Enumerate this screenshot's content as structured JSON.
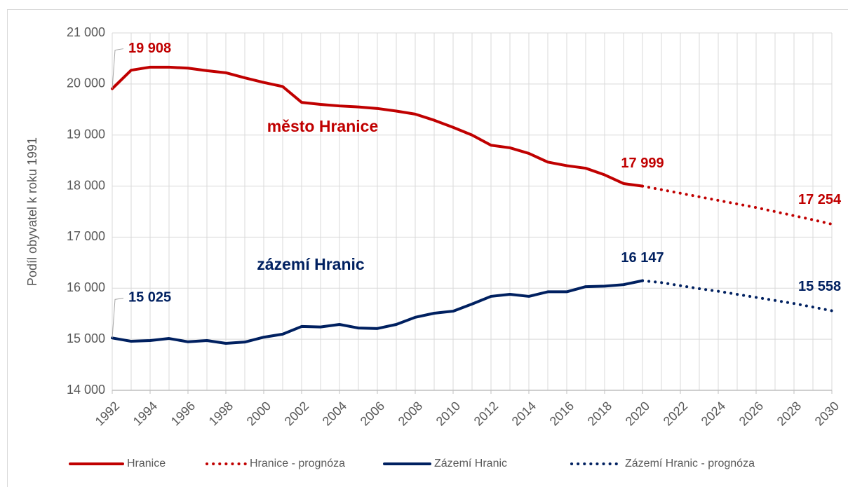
{
  "chart_data": {
    "type": "line",
    "y_label": "Podíl obyvatel k roku 1991",
    "annotations": [
      "město Hranice",
      "zázemí Hranic"
    ],
    "x": [
      1992,
      1993,
      1994,
      1995,
      1996,
      1997,
      1998,
      1999,
      2000,
      2001,
      2002,
      2003,
      2004,
      2005,
      2006,
      2007,
      2008,
      2009,
      2010,
      2011,
      2012,
      2013,
      2014,
      2015,
      2016,
      2017,
      2018,
      2019,
      2020,
      2021,
      2022,
      2023,
      2024,
      2025,
      2026,
      2027,
      2028,
      2029,
      2030
    ],
    "xlim": [
      1992,
      2030
    ],
    "xticks": [
      1992,
      1994,
      1996,
      1998,
      2000,
      2002,
      2004,
      2006,
      2008,
      2010,
      2012,
      2014,
      2016,
      2018,
      2020,
      2022,
      2024,
      2026,
      2028,
      2030
    ],
    "ylim": [
      14000,
      21000
    ],
    "yticks": [
      {
        "value": 14000,
        "label": "14 000"
      },
      {
        "value": 15000,
        "label": "15 000"
      },
      {
        "value": 16000,
        "label": "16 000"
      },
      {
        "value": 17000,
        "label": "17 000"
      },
      {
        "value": 18000,
        "label": "18 000"
      },
      {
        "value": 19000,
        "label": "19 000"
      },
      {
        "value": 20000,
        "label": "20 000"
      },
      {
        "value": 21000,
        "label": "21 000"
      }
    ],
    "grid": true,
    "legend": "bottom",
    "series": [
      {
        "name": "Hranice",
        "color": "#c00000",
        "style": "solid",
        "values": [
          19908,
          20270,
          20330,
          20330,
          20310,
          20260,
          20220,
          20120,
          20030,
          19950,
          19640,
          19600,
          19570,
          19550,
          19520,
          19470,
          19410,
          19290,
          19150,
          19000,
          18800,
          18750,
          18640,
          18470,
          18400,
          18350,
          18220,
          18050,
          17999,
          null,
          null,
          null,
          null,
          null,
          null,
          null,
          null,
          null,
          null
        ],
        "value_labels": [
          "19 908",
          null,
          null,
          null,
          null,
          null,
          null,
          null,
          null,
          null,
          null,
          null,
          null,
          null,
          null,
          null,
          null,
          null,
          null,
          null,
          null,
          null,
          null,
          null,
          null,
          null,
          null,
          null,
          "17 999",
          null,
          null,
          null,
          null,
          null,
          null,
          null,
          null,
          null,
          null
        ]
      },
      {
        "name": "Hranice - prognóza",
        "color": "#c00000",
        "style": "dotted",
        "values": [
          null,
          null,
          null,
          null,
          null,
          null,
          null,
          null,
          null,
          null,
          null,
          null,
          null,
          null,
          null,
          null,
          null,
          null,
          null,
          null,
          null,
          null,
          null,
          null,
          null,
          null,
          null,
          null,
          17999,
          17930,
          17860,
          17790,
          17720,
          17650,
          17580,
          17500,
          17420,
          17340,
          17254
        ],
        "value_labels": [
          null,
          null,
          null,
          null,
          null,
          null,
          null,
          null,
          null,
          null,
          null,
          null,
          null,
          null,
          null,
          null,
          null,
          null,
          null,
          null,
          null,
          null,
          null,
          null,
          null,
          null,
          null,
          null,
          null,
          null,
          null,
          null,
          null,
          null,
          null,
          null,
          null,
          null,
          "17 254"
        ]
      },
      {
        "name": "Zázemí Hranic",
        "color": "#002060",
        "style": "solid",
        "values": [
          15025,
          14960,
          14975,
          15015,
          14950,
          14975,
          14920,
          14945,
          15040,
          15100,
          15250,
          15240,
          15290,
          15220,
          15210,
          15290,
          15430,
          15510,
          15550,
          15690,
          15840,
          15880,
          15840,
          15930,
          15930,
          16030,
          16040,
          16070,
          16147,
          null,
          null,
          null,
          null,
          null,
          null,
          null,
          null,
          null,
          null
        ],
        "value_labels": [
          "15 025",
          null,
          null,
          null,
          null,
          null,
          null,
          null,
          null,
          null,
          null,
          null,
          null,
          null,
          null,
          null,
          null,
          null,
          null,
          null,
          null,
          null,
          null,
          null,
          null,
          null,
          null,
          null,
          "16 147",
          null,
          null,
          null,
          null,
          null,
          null,
          null,
          null,
          null,
          null
        ]
      },
      {
        "name": "Zázemí Hranic - prognóza",
        "color": "#002060",
        "style": "dotted",
        "values": [
          null,
          null,
          null,
          null,
          null,
          null,
          null,
          null,
          null,
          null,
          null,
          null,
          null,
          null,
          null,
          null,
          null,
          null,
          null,
          null,
          null,
          null,
          null,
          null,
          null,
          null,
          null,
          null,
          16147,
          16110,
          16050,
          15990,
          15940,
          15880,
          15820,
          15760,
          15700,
          15630,
          15558
        ],
        "value_labels": [
          null,
          null,
          null,
          null,
          null,
          null,
          null,
          null,
          null,
          null,
          null,
          null,
          null,
          null,
          null,
          null,
          null,
          null,
          null,
          null,
          null,
          null,
          null,
          null,
          null,
          null,
          null,
          null,
          null,
          null,
          null,
          null,
          null,
          null,
          null,
          null,
          null,
          null,
          "15 558"
        ]
      }
    ]
  }
}
